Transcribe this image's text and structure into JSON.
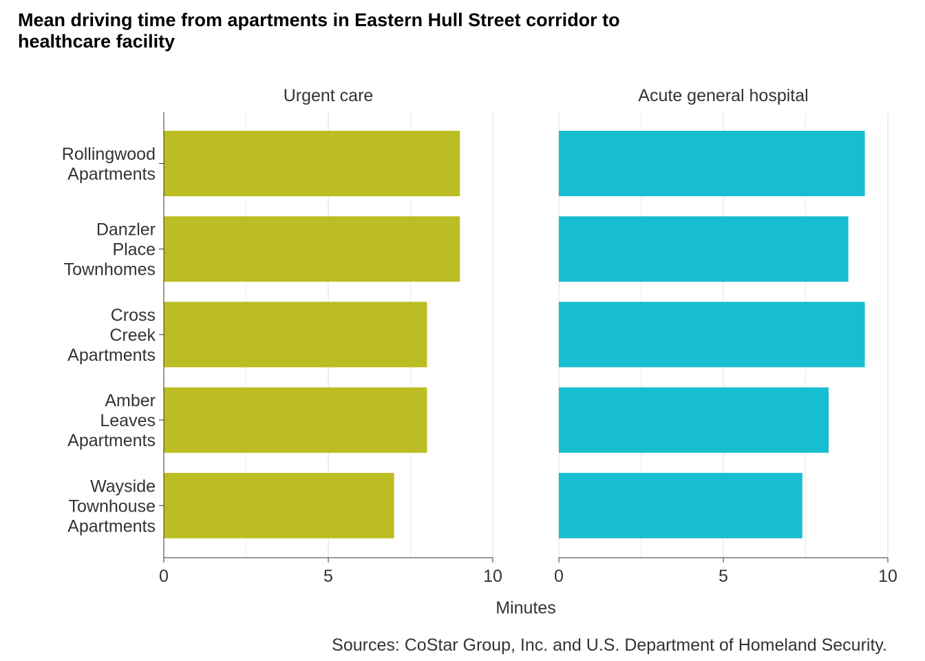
{
  "chart_data": {
    "type": "bar",
    "orientation": "horizontal",
    "title": "Mean driving time from apartments in Eastern Hull Street corridor to healthcare facility",
    "xlabel": "Minutes",
    "caption": "Sources: CoStar Group, Inc. and U.S. Department of Homeland Security.",
    "categories": [
      [
        "Rollingwood",
        "Apartments"
      ],
      [
        "Danzler",
        "Place",
        "Townhomes"
      ],
      [
        "Cross",
        "Creek",
        "Apartments"
      ],
      [
        "Amber",
        "Leaves",
        "Apartments"
      ],
      [
        "Wayside",
        "Townhouse",
        "Apartments"
      ]
    ],
    "xlim": [
      0,
      10
    ],
    "xticks": [
      0,
      5,
      10
    ],
    "grid": "vertical major and minor gridlines",
    "panels": [
      {
        "title": "Urgent care",
        "color": "#BCBD22",
        "values": [
          9.0,
          9.0,
          8.0,
          8.0,
          7.0
        ]
      },
      {
        "title": "Acute general hospital",
        "color": "#17BECF",
        "values": [
          9.3,
          8.8,
          9.3,
          8.2,
          7.4
        ]
      }
    ]
  }
}
